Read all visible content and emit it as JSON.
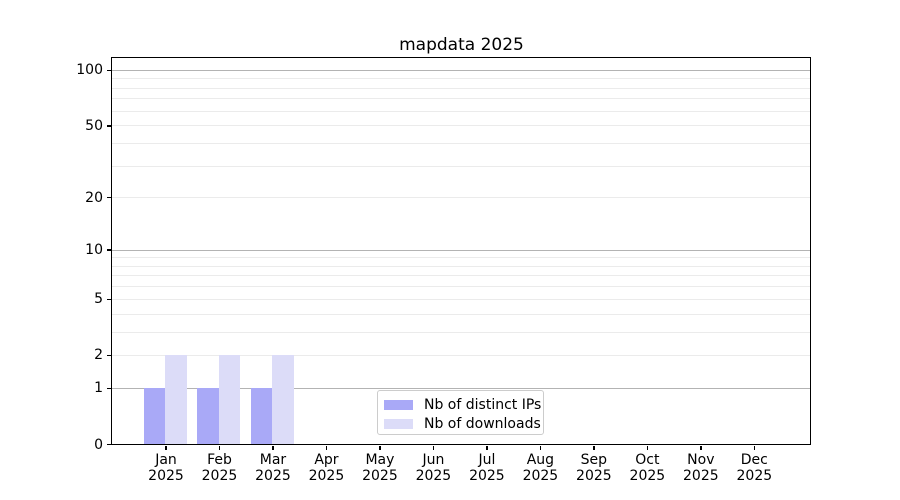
{
  "title": "mapdata 2025",
  "colors": {
    "distinct_ips": "#a9a9f7",
    "downloads": "#dcdcf8",
    "grid_major": "#b3b3b3",
    "grid_minor": "#ebebeb",
    "axis": "#000000",
    "text": "#000000",
    "legend_border": "#cccccc",
    "background": "#ffffff"
  },
  "legend": {
    "items": [
      {
        "label": "Nb of distinct IPs",
        "color_key": "distinct_ips"
      },
      {
        "label": "Nb of downloads",
        "color_key": "downloads"
      }
    ]
  },
  "chart_data": {
    "type": "bar",
    "title": "mapdata 2025",
    "categories": [
      "Jan",
      "Feb",
      "Mar",
      "Apr",
      "May",
      "Jun",
      "Jul",
      "Aug",
      "Sep",
      "Oct",
      "Nov",
      "Dec"
    ],
    "year": "2025",
    "series": [
      {
        "name": "Nb of distinct IPs",
        "color_key": "distinct_ips",
        "values": [
          1,
          1,
          1,
          0,
          0,
          0,
          0,
          0,
          0,
          0,
          0,
          0
        ]
      },
      {
        "name": "Nb of downloads",
        "color_key": "downloads",
        "values": [
          2,
          2,
          2,
          0,
          0,
          0,
          0,
          0,
          0,
          0,
          0,
          0
        ]
      }
    ],
    "xlabel": "",
    "ylabel": "",
    "yscale": "log10(value+1)",
    "ylim": [
      0,
      116
    ],
    "yticks": [
      0,
      1,
      2,
      5,
      10,
      20,
      50,
      100
    ],
    "ytick_labels": [
      "0",
      "1",
      "2",
      "5",
      "10",
      "20",
      "50",
      "100"
    ],
    "grid_major_values": [
      1,
      10,
      100
    ],
    "grid_minor_values": [
      2,
      3,
      4,
      5,
      6,
      7,
      8,
      9,
      20,
      30,
      40,
      50,
      60,
      70,
      80,
      90
    ],
    "grid": "on",
    "legend_position": "inside-bottom-center"
  }
}
